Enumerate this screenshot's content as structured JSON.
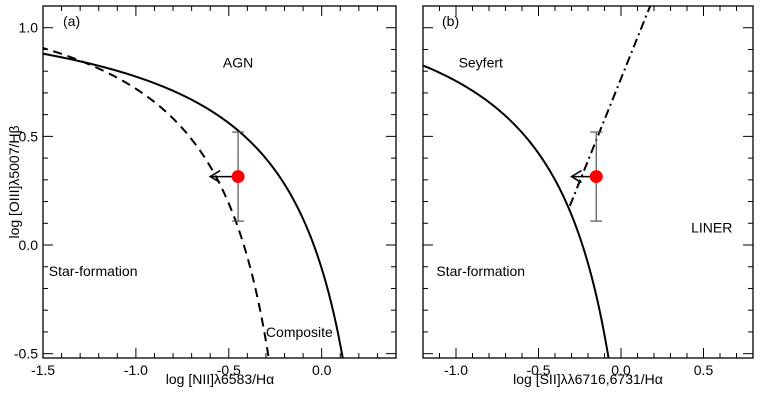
{
  "chart_data": [
    {
      "type": "scatter",
      "panel_label": "(a)",
      "xlabel": "log [NII]λ6583/Hα",
      "ylabel": "log [OIII]λ5007/Hβ",
      "xlim": [
        -1.5,
        0.4
      ],
      "ylim": [
        -0.52,
        1.1
      ],
      "x_ticks": [
        -1.5,
        -1.0,
        -0.5,
        0.0
      ],
      "x_tick_labels": [
        "-1.5",
        "-1.0",
        "-0.5",
        "0.0"
      ],
      "y_ticks": [
        -0.5,
        0.0,
        0.5,
        1.0
      ],
      "y_tick_labels": [
        "-0.5",
        "0.0",
        "0.5",
        "1.0"
      ],
      "regions": [
        {
          "name": "AGN",
          "x": -0.45,
          "y": 0.84
        },
        {
          "name": "Star-formation",
          "x": -1.23,
          "y": -0.12
        },
        {
          "name": "Composite",
          "x": -0.12,
          "y": -0.4
        }
      ],
      "curves": [
        {
          "kind": "kewley",
          "style": "solid",
          "a": 0.61,
          "b": 0.47,
          "c": 1.19
        },
        {
          "kind": "kauffmann",
          "style": "dashed",
          "a": 0.61,
          "b": 0.05,
          "c": 1.3
        }
      ],
      "point": {
        "x": -0.45,
        "y": 0.315,
        "yerr_low": 0.11,
        "yerr_high": 0.52,
        "arrow_to_x": -0.6,
        "color": "#ff0000",
        "upper_limit_x": true
      }
    },
    {
      "type": "scatter",
      "panel_label": "(b)",
      "xlabel": "log [SII]λλ6716,6731/Hα",
      "ylabel": "",
      "xlim": [
        -1.2,
        0.8
      ],
      "ylim": [
        -0.52,
        1.1
      ],
      "x_ticks": [
        -1.0,
        -0.5,
        0.0,
        0.5
      ],
      "x_tick_labels": [
        "-1.0",
        "-0.5",
        "0.0",
        "0.5"
      ],
      "y_ticks": [
        -0.5,
        0.0,
        0.5,
        1.0
      ],
      "y_tick_labels": [],
      "regions": [
        {
          "name": "Seyfert",
          "x": -0.85,
          "y": 0.84
        },
        {
          "name": "Star-formation",
          "x": -0.85,
          "y": -0.12
        },
        {
          "name": "LINER",
          "x": 0.55,
          "y": 0.08
        }
      ],
      "curves": [
        {
          "kind": "kewley",
          "style": "solid",
          "a": 0.72,
          "b": 0.32,
          "c": 1.3
        },
        {
          "kind": "line",
          "style": "dashdot",
          "x0": -0.31,
          "y0": 0.18,
          "slope": 1.89
        }
      ],
      "point": {
        "x": -0.15,
        "y": 0.315,
        "yerr_low": 0.11,
        "yerr_high": 0.52,
        "arrow_to_x": -0.3,
        "color": "#ff0000",
        "upper_limit_x": true
      }
    }
  ]
}
